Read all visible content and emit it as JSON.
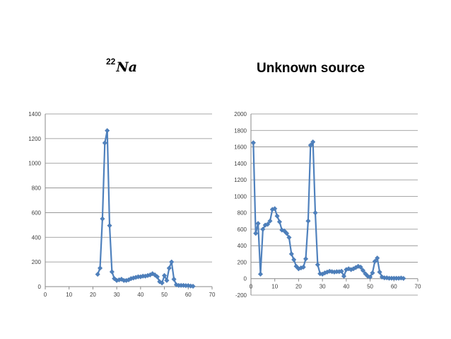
{
  "titles": {
    "left_sup": "22",
    "left_main": "Na",
    "right": "Unknown source"
  },
  "chart_data": [
    {
      "type": "scatter",
      "title": "22Na",
      "xlim": [
        0,
        70
      ],
      "ylim": [
        0,
        1400
      ],
      "xticks": [
        0,
        10,
        20,
        30,
        40,
        50,
        60,
        70
      ],
      "yticks": [
        0,
        200,
        400,
        600,
        800,
        1000,
        1200,
        1400
      ],
      "grid": "horizontal",
      "color": "#4f81bd",
      "x": [
        22,
        23,
        24,
        25,
        26,
        27,
        28,
        29,
        30,
        31,
        32,
        33,
        34,
        35,
        36,
        37,
        38,
        39,
        40,
        41,
        42,
        43,
        44,
        45,
        46,
        47,
        48,
        49,
        50,
        51,
        52,
        53,
        54,
        55,
        56,
        57,
        58,
        59,
        60,
        61,
        62
      ],
      "y": [
        100,
        150,
        550,
        1165,
        1265,
        495,
        120,
        65,
        50,
        55,
        60,
        50,
        50,
        55,
        65,
        70,
        75,
        80,
        80,
        85,
        85,
        90,
        95,
        105,
        95,
        80,
        40,
        30,
        90,
        50,
        150,
        200,
        60,
        15,
        10,
        10,
        10,
        8,
        8,
        5,
        3
      ]
    },
    {
      "type": "scatter",
      "title": "Unknown source",
      "xlim": [
        0,
        70
      ],
      "ylim": [
        -200,
        2000
      ],
      "xticks": [
        0,
        10,
        20,
        30,
        40,
        50,
        60,
        70
      ],
      "yticks": [
        -200,
        0,
        200,
        400,
        600,
        800,
        1000,
        1200,
        1400,
        1600,
        1800,
        2000
      ],
      "grid": "horizontal",
      "color": "#4f81bd",
      "x": [
        1,
        2,
        3,
        4,
        5,
        6,
        7,
        8,
        9,
        10,
        11,
        12,
        13,
        14,
        15,
        16,
        17,
        18,
        19,
        20,
        21,
        22,
        23,
        24,
        25,
        26,
        27,
        28,
        29,
        30,
        31,
        32,
        33,
        34,
        35,
        36,
        37,
        38,
        39,
        40,
        41,
        42,
        43,
        44,
        45,
        46,
        47,
        48,
        49,
        50,
        51,
        52,
        53,
        54,
        55,
        56,
        57,
        58,
        59,
        60,
        61,
        62,
        63,
        64
      ],
      "y": [
        1650,
        550,
        670,
        55,
        600,
        650,
        660,
        700,
        840,
        850,
        760,
        690,
        590,
        580,
        550,
        500,
        300,
        230,
        150,
        120,
        130,
        140,
        240,
        700,
        1620,
        1660,
        800,
        170,
        60,
        55,
        70,
        80,
        90,
        85,
        80,
        85,
        85,
        90,
        30,
        110,
        120,
        110,
        120,
        135,
        150,
        140,
        100,
        60,
        30,
        20,
        70,
        210,
        250,
        80,
        20,
        10,
        10,
        5,
        5,
        5,
        5,
        5,
        8,
        3
      ]
    }
  ]
}
